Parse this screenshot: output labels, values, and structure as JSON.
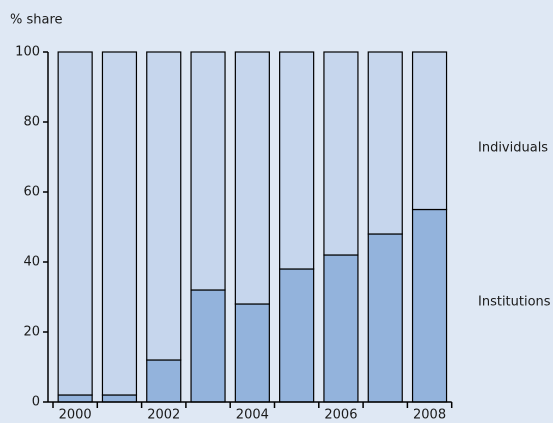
{
  "chart_data": {
    "type": "stacked_bar",
    "y_label": "% share",
    "categories": [
      "2000",
      null,
      "2002",
      null,
      "2004",
      null,
      "2006",
      null,
      "2008"
    ],
    "series": [
      {
        "name": "Institutions",
        "color": "#93b3dc",
        "values": [
          2,
          2,
          12,
          32,
          28,
          38,
          42,
          48,
          55
        ]
      },
      {
        "name": "Individuals",
        "color": "#c6d6ed",
        "values": [
          98,
          98,
          88,
          68,
          72,
          62,
          58,
          52,
          45
        ]
      }
    ],
    "ylim": [
      0,
      100
    ],
    "yticks": [
      0,
      20,
      40,
      60,
      80,
      100
    ],
    "grid": false
  }
}
